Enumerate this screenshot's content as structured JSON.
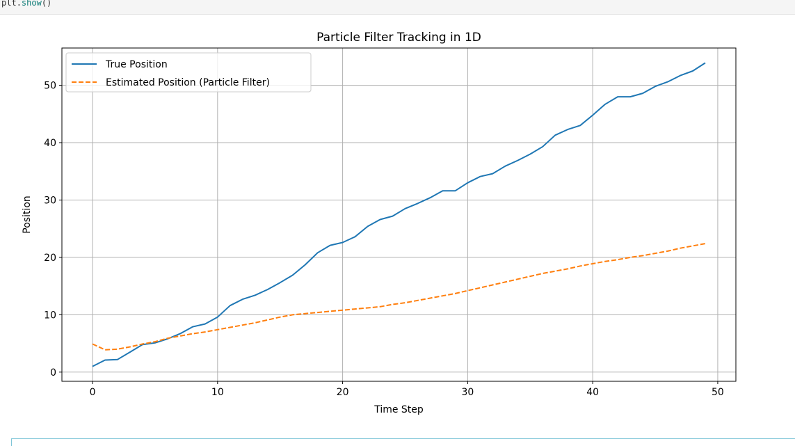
{
  "code": {
    "object": "plt",
    "method": "show",
    "call_suffix": "()"
  },
  "colors": {
    "true_series": "#1f77b4",
    "estimated_series": "#ff7f0e",
    "grid": "#b0b0b0",
    "next_cell_border": "#7fc6d8"
  },
  "chart_data": {
    "type": "line",
    "title": "Particle Filter Tracking in 1D",
    "xlabel": "Time Step",
    "ylabel": "Position",
    "xlim": [
      -2.45,
      51.45
    ],
    "ylim": [
      -1.6,
      56.5
    ],
    "xticks": [
      0,
      10,
      20,
      30,
      40,
      50
    ],
    "yticks": [
      0,
      10,
      20,
      30,
      40,
      50
    ],
    "grid": true,
    "legend_position": "upper-left",
    "x": [
      0,
      1,
      2,
      3,
      4,
      5,
      6,
      7,
      8,
      9,
      10,
      11,
      12,
      13,
      14,
      15,
      16,
      17,
      18,
      19,
      20,
      21,
      22,
      23,
      24,
      25,
      26,
      27,
      28,
      29,
      30,
      31,
      32,
      33,
      34,
      35,
      36,
      37,
      38,
      39,
      40,
      41,
      42,
      43,
      44,
      45,
      46,
      47,
      48,
      49
    ],
    "series": [
      {
        "name": "True Position",
        "style": "solid",
        "color": "#1f77b4",
        "values": [
          1.0,
          2.1,
          2.2,
          3.5,
          4.8,
          5.1,
          5.8,
          6.7,
          7.9,
          8.4,
          9.6,
          11.6,
          12.7,
          13.4,
          14.4,
          15.6,
          16.9,
          18.7,
          20.8,
          22.1,
          22.6,
          23.6,
          25.4,
          26.6,
          27.2,
          28.5,
          29.4,
          30.4,
          31.6,
          31.6,
          33.0,
          34.1,
          34.6,
          35.9,
          36.9,
          38.0,
          39.3,
          41.3,
          42.3,
          43.0,
          44.8,
          46.7,
          48.0,
          48.0,
          48.6,
          49.8,
          50.6,
          51.7,
          52.5,
          53.9
        ]
      },
      {
        "name": "Estimated Position (Particle Filter)",
        "style": "dashed",
        "color": "#ff7f0e",
        "values": [
          4.9,
          3.9,
          4.0,
          4.4,
          4.9,
          5.3,
          5.9,
          6.3,
          6.7,
          7.0,
          7.4,
          7.8,
          8.2,
          8.6,
          9.1,
          9.6,
          10.0,
          10.2,
          10.4,
          10.6,
          10.8,
          11.0,
          11.2,
          11.4,
          11.8,
          12.1,
          12.5,
          12.9,
          13.3,
          13.7,
          14.2,
          14.7,
          15.2,
          15.7,
          16.2,
          16.7,
          17.2,
          17.6,
          18.0,
          18.5,
          18.9,
          19.3,
          19.6,
          20.0,
          20.3,
          20.7,
          21.1,
          21.6,
          22.0,
          22.4
        ]
      }
    ]
  }
}
